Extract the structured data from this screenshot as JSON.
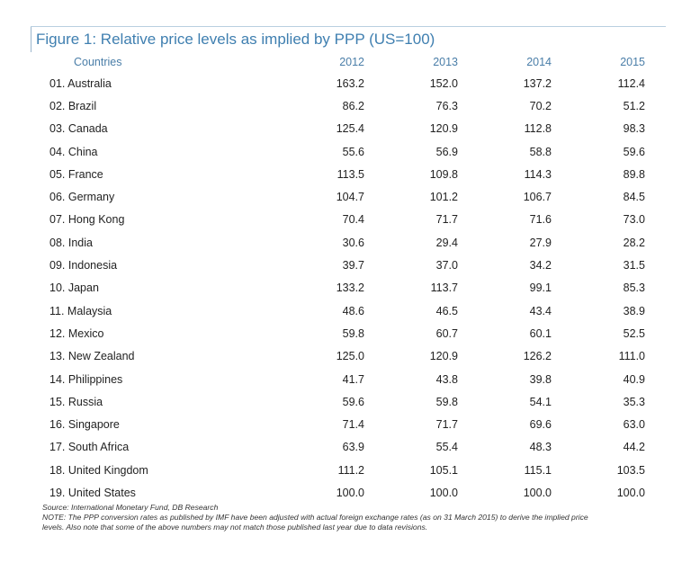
{
  "chart_data": {
    "type": "table",
    "title": "Figure 1: Relative price levels as implied by PPP (US=100)",
    "columns": [
      "Countries",
      "2012",
      "2013",
      "2014",
      "2015"
    ],
    "rows": [
      [
        "01. Australia",
        "163.2",
        "152.0",
        "137.2",
        "112.4"
      ],
      [
        "02. Brazil",
        "86.2",
        "76.3",
        "70.2",
        "51.2"
      ],
      [
        "03. Canada",
        "125.4",
        "120.9",
        "112.8",
        "98.3"
      ],
      [
        "04. China",
        "55.6",
        "56.9",
        "58.8",
        "59.6"
      ],
      [
        "05. France",
        "113.5",
        "109.8",
        "114.3",
        "89.8"
      ],
      [
        "06. Germany",
        "104.7",
        "101.2",
        "106.7",
        "84.5"
      ],
      [
        "07. Hong Kong",
        "70.4",
        "71.7",
        "71.6",
        "73.0"
      ],
      [
        "08. India",
        "30.6",
        "29.4",
        "27.9",
        "28.2"
      ],
      [
        "09. Indonesia",
        "39.7",
        "37.0",
        "34.2",
        "31.5"
      ],
      [
        "10. Japan",
        "133.2",
        "113.7",
        "99.1",
        "85.3"
      ],
      [
        "11. Malaysia",
        "48.6",
        "46.5",
        "43.4",
        "38.9"
      ],
      [
        "12. Mexico",
        "59.8",
        "60.7",
        "60.1",
        "52.5"
      ],
      [
        "13. New Zealand",
        "125.0",
        "120.9",
        "126.2",
        "111.0"
      ],
      [
        "14. Philippines",
        "41.7",
        "43.8",
        "39.8",
        "40.9"
      ],
      [
        "15. Russia",
        "59.6",
        "59.8",
        "54.1",
        "35.3"
      ],
      [
        "16. Singapore",
        "71.4",
        "71.7",
        "69.6",
        "63.0"
      ],
      [
        "17. South Africa",
        "63.9",
        "55.4",
        "48.3",
        "44.2"
      ],
      [
        "18. United Kingdom",
        "111.2",
        "105.1",
        "115.1",
        "103.5"
      ],
      [
        "19. United States",
        "100.0",
        "100.0",
        "100.0",
        "100.0"
      ]
    ],
    "source": "Source: International Monetary Fund, DB Research",
    "note": "NOTE: The PPP conversion rates as published by IMF have been adjusted with actual foreign exchange rates (as on 31 March 2015) to derive the implied price levels. Also note that some of the above numbers may not match those published last year due to data revisions.",
    "colors": {
      "title": "#3f7fb0",
      "header": "#4a7ea8"
    }
  }
}
